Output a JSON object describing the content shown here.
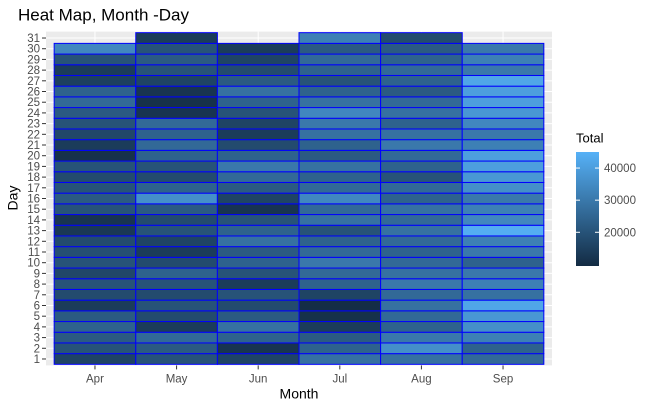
{
  "chart_data": {
    "type": "heatmap",
    "title": "Heat Map, Month -Day",
    "x_label": "Month",
    "y_label": "Day",
    "categories": [
      "Apr",
      "May",
      "Jun",
      "Jul",
      "Aug",
      "Sep"
    ],
    "days": [
      1,
      2,
      3,
      4,
      5,
      6,
      7,
      8,
      9,
      10,
      11,
      12,
      13,
      14,
      15,
      16,
      17,
      18,
      19,
      20,
      21,
      22,
      23,
      24,
      25,
      26,
      27,
      28,
      29,
      30,
      31
    ],
    "values": [
      [
        16000,
        20000,
        22000,
        24000,
        22000,
        14000,
        18000,
        20000,
        17000,
        20000,
        19000,
        18000,
        13000,
        12000,
        20000,
        22000,
        20000,
        18000,
        20000,
        11000,
        14000,
        17000,
        20000,
        22000,
        26000,
        24000,
        15000,
        14000,
        20000,
        34000,
        null
      ],
      [
        20000,
        22000,
        26000,
        14000,
        18000,
        20000,
        18000,
        20000,
        24000,
        18000,
        14000,
        16000,
        20000,
        18000,
        22000,
        36000,
        24000,
        18000,
        20000,
        24000,
        26000,
        24000,
        26000,
        12000,
        11000,
        12000,
        16000,
        20000,
        22000,
        20000,
        14000
      ],
      [
        16000,
        12000,
        24000,
        28000,
        22000,
        18000,
        20000,
        14000,
        20000,
        24000,
        22000,
        28000,
        24000,
        20000,
        12000,
        16000,
        22000,
        26000,
        30000,
        24000,
        18000,
        14000,
        16000,
        20000,
        24000,
        28000,
        22000,
        18000,
        16000,
        14000,
        null
      ],
      [
        28000,
        24000,
        22000,
        14000,
        11000,
        10000,
        16000,
        24000,
        26000,
        30000,
        26000,
        24000,
        20000,
        28000,
        26000,
        34000,
        26000,
        24000,
        28000,
        22000,
        24000,
        28000,
        30000,
        34000,
        28000,
        24000,
        20000,
        24000,
        26000,
        22000,
        32000
      ],
      [
        28000,
        36000,
        30000,
        24000,
        26000,
        28000,
        26000,
        30000,
        28000,
        26000,
        24000,
        26000,
        28000,
        26000,
        28000,
        24000,
        26000,
        20000,
        24000,
        26000,
        30000,
        28000,
        24000,
        28000,
        26000,
        22000,
        24000,
        26000,
        24000,
        22000,
        18000
      ],
      [
        26000,
        24000,
        32000,
        36000,
        38000,
        42000,
        28000,
        32000,
        30000,
        24000,
        30000,
        32000,
        44000,
        34000,
        32000,
        30000,
        36000,
        38000,
        40000,
        40000,
        32000,
        30000,
        34000,
        38000,
        40000,
        40000,
        42000,
        30000,
        32000,
        30000,
        null
      ]
    ],
    "legend_title": "Total",
    "colorbar_lim": [
      9500,
      45000
    ],
    "colorbar_ticks": [
      20000,
      30000,
      40000
    ],
    "low_color": "#132B43",
    "high_color": "#56B1F7",
    "border_color": "#0000ff"
  }
}
